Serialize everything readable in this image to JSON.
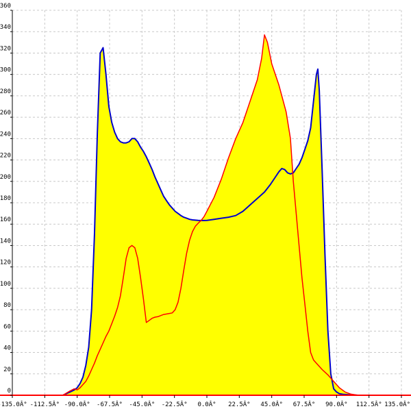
{
  "chart_data": {
    "type": "area",
    "title": "",
    "xlabel": "",
    "ylabel": "",
    "xlim": [
      -135,
      135
    ],
    "ylim": [
      0,
      360
    ],
    "grid": true,
    "legend": "none",
    "x_ticks": [
      -135,
      -112.5,
      -90,
      -67.5,
      -45,
      -22.5,
      0,
      22.5,
      45,
      67.5,
      90,
      112.5,
      135
    ],
    "x_tick_labels": [
      "-135.0Â°",
      "-112.5Â°",
      "-90.0Â°",
      "-67.5Â°",
      "-45.0Â°",
      "-22.5Â°",
      "0.0Â°",
      "22.5Â°",
      "45.0Â°",
      "67.5Â°",
      "90.0Â°",
      "112.5Â°",
      "135.0Â°"
    ],
    "y_ticks": [
      0,
      20,
      40,
      60,
      80,
      100,
      120,
      140,
      160,
      180,
      200,
      220,
      240,
      260,
      280,
      300,
      320,
      340,
      360
    ],
    "y_tick_labels": [
      "0",
      "20",
      "40",
      "60",
      "80",
      "100",
      "120",
      "140",
      "160",
      "180",
      "200",
      "220",
      "240",
      "260",
      "280",
      "300",
      "320",
      "340",
      "360"
    ],
    "colors": {
      "fill": "#ffff00",
      "series_blue": "#0000cc",
      "series_red": "#ff0000",
      "grid": "#c8c8c8",
      "axis": "#000000",
      "baseline": "#ff0000"
    },
    "series": [
      {
        "x": [
          -100,
          -95,
          -92,
          -90,
          -88,
          -86,
          -84,
          -82,
          -80,
          -78,
          -76,
          -74,
          -72,
          -70,
          -68,
          -66,
          -64,
          -62,
          -60,
          -58,
          -56,
          -54,
          -52,
          -50,
          -48,
          -46,
          -44,
          -42,
          -40,
          -38,
          -36,
          -34,
          -32,
          -30,
          -28,
          -26,
          -24,
          -22,
          -20,
          -18,
          -16,
          -14,
          -12,
          -10,
          -8,
          -6,
          -4,
          -2,
          0,
          5,
          10,
          15,
          20,
          25,
          30,
          35,
          40,
          44,
          48,
          50,
          52,
          54,
          56,
          58,
          60,
          62,
          64,
          66,
          68,
          70,
          72,
          74,
          76,
          77,
          78,
          80,
          82,
          84,
          86,
          88,
          90,
          92,
          95,
          100,
          105
        ],
        "values": [
          0,
          3,
          5,
          7,
          11,
          17,
          28,
          45,
          80,
          150,
          245,
          320,
          325,
          300,
          270,
          255,
          246,
          240,
          237,
          236,
          236,
          237,
          240,
          240,
          237,
          232,
          228,
          223,
          217,
          211,
          204,
          198,
          192,
          186,
          182,
          178,
          175,
          172,
          170,
          168,
          166.5,
          165.5,
          164.5,
          164,
          163.7,
          163.5,
          163.4,
          163.4,
          163.5,
          164.5,
          165.5,
          166.5,
          168,
          172,
          178,
          184,
          190,
          197,
          205,
          209,
          212,
          211,
          208,
          207,
          208,
          212,
          216,
          222,
          230,
          238,
          250,
          275,
          300,
          305,
          285,
          210,
          130,
          60,
          20,
          6,
          3,
          1.5,
          0.8,
          0.3,
          0
        ]
      },
      {
        "x": [
          -100,
          -95,
          -92,
          -90,
          -88,
          -86,
          -84,
          -82,
          -80,
          -78,
          -76,
          -74,
          -72,
          -70,
          -68,
          -66,
          -64,
          -62,
          -60,
          -58,
          -56,
          -54,
          -52,
          -50,
          -48,
          -46,
          -44,
          -42,
          -40,
          -38,
          -36,
          -34,
          -32,
          -30,
          -28,
          -26,
          -24,
          -22,
          -20,
          -18,
          -16,
          -14,
          -12,
          -10,
          -8,
          -6,
          -4,
          -2,
          0,
          5,
          10,
          15,
          20,
          25,
          30,
          35,
          38,
          40,
          42,
          45,
          50,
          55,
          58,
          60,
          62,
          64,
          66,
          68,
          70,
          72,
          74,
          76,
          78,
          80,
          84,
          88,
          92,
          96,
          100,
          105
        ],
        "values": [
          0,
          4,
          6,
          5,
          7,
          10,
          13,
          18,
          24,
          30,
          37,
          43,
          49,
          55,
          60,
          67,
          74,
          82,
          93,
          110,
          128,
          138,
          140,
          138,
          128,
          110,
          90,
          68,
          70,
          72,
          73,
          73.5,
          74.5,
          75.5,
          76,
          76.5,
          77,
          80,
          87,
          100,
          117,
          133,
          145,
          153,
          158,
          161,
          163.5,
          167,
          172,
          185,
          202,
          222,
          240,
          255,
          275,
          295,
          315,
          337,
          330,
          310,
          290,
          265,
          240,
          200,
          170,
          140,
          110,
          85,
          60,
          40,
          33,
          30,
          27,
          24,
          19,
          13,
          7,
          3,
          1,
          0
        ]
      }
    ]
  }
}
